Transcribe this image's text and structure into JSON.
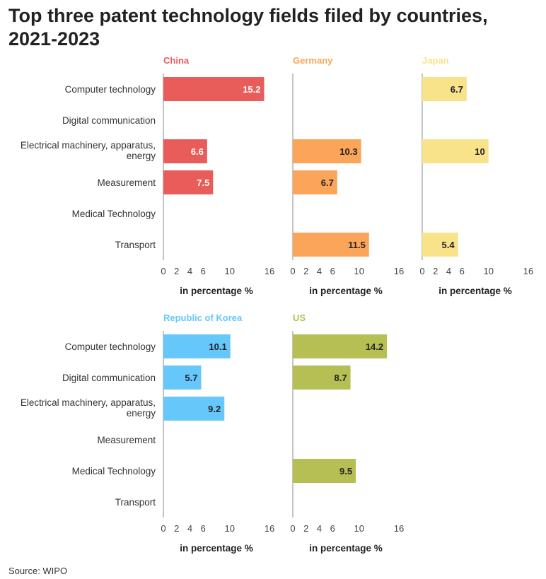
{
  "title": "Top three patent technology fields filed by countries, 2021-2023",
  "source": "Source: WIPO",
  "colors": {
    "China": "#e85c5a",
    "Germany": "#fba55a",
    "Japan": "#f8e38a",
    "Republic of Korea": "#66c8fa",
    "US": "#b6bf54",
    "axis": "#888888",
    "label_dark": "#222222",
    "label_light": "#ffffff"
  },
  "chart_data": {
    "type": "bar",
    "orientation": "horizontal",
    "layout": "small-multiples",
    "categories": [
      "Computer technology",
      "Digital communication",
      "Electrical machinery, apparatus, energy",
      "Measurement",
      "Medical Technology",
      "Transport"
    ],
    "xlabel": "in percentage %",
    "xlim": [
      0,
      16
    ],
    "xticks": [
      0,
      2,
      4,
      6,
      10,
      16
    ],
    "series": [
      {
        "name": "China",
        "values": [
          15.2,
          null,
          6.6,
          7.5,
          null,
          null
        ]
      },
      {
        "name": "Germany",
        "values": [
          null,
          null,
          10.3,
          6.7,
          null,
          11.5
        ]
      },
      {
        "name": "Japan",
        "values": [
          6.7,
          null,
          10,
          null,
          null,
          5.4
        ]
      },
      {
        "name": "Republic of Korea",
        "values": [
          10.1,
          5.7,
          9.2,
          null,
          null,
          null
        ]
      },
      {
        "name": "US",
        "values": [
          14.2,
          8.7,
          null,
          null,
          9.5,
          null
        ]
      }
    ]
  }
}
